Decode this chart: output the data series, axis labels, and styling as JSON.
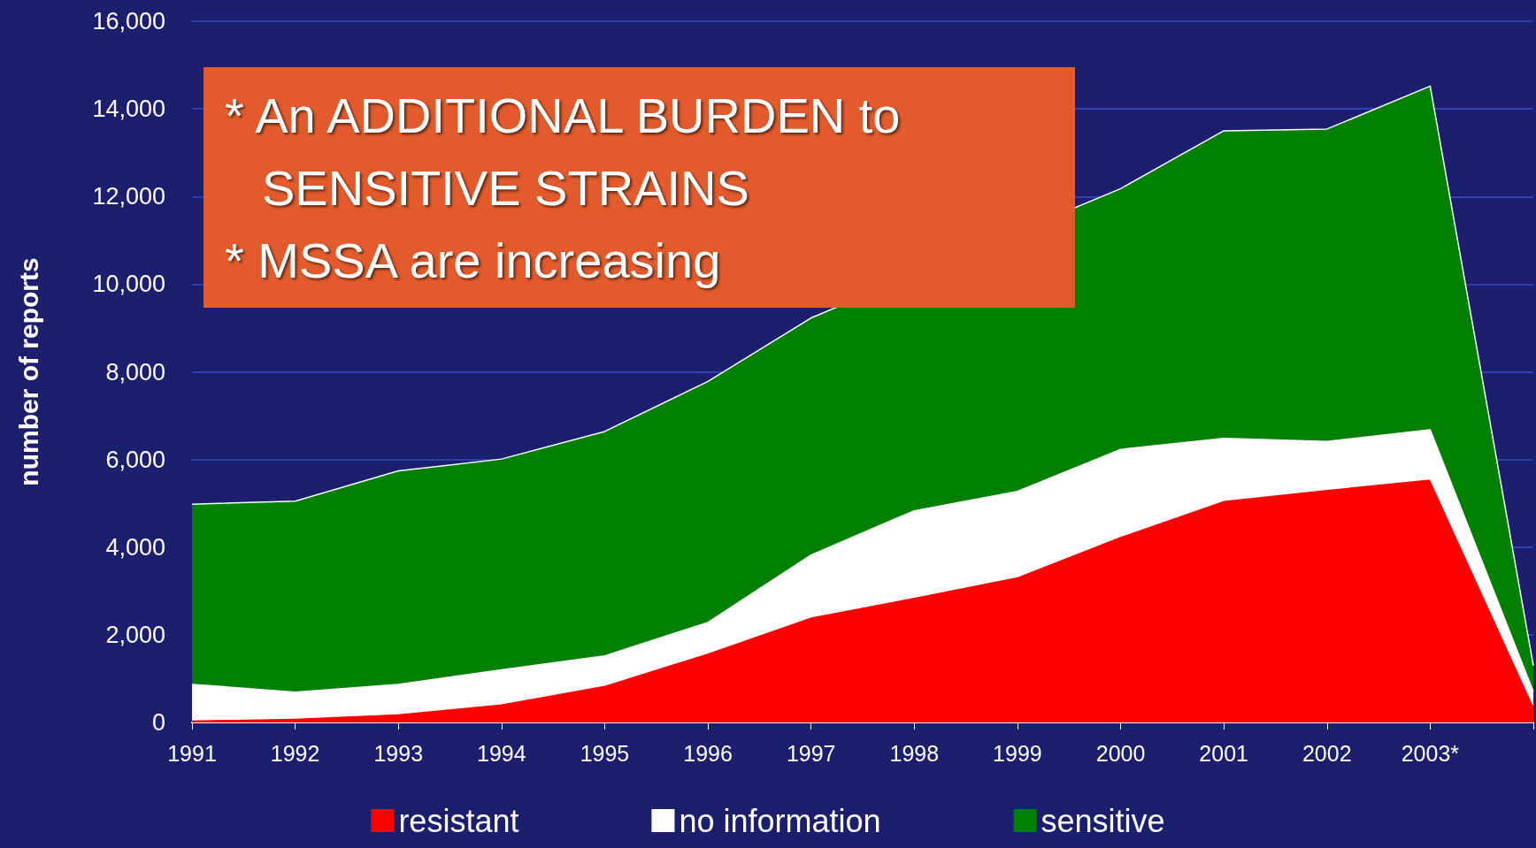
{
  "chart_data": {
    "type": "area",
    "stacked": true,
    "ylabel": "number of reports",
    "categories": [
      "1991",
      "1992",
      "1993",
      "1994",
      "1995",
      "1996",
      "1997",
      "1998",
      "1999",
      "2000",
      "2001",
      "2002",
      "2003*",
      null
    ],
    "series": [
      {
        "name": "resistant",
        "color": "#ff0000",
        "values": [
          60,
          100,
          200,
          430,
          850,
          1590,
          2410,
          2860,
          3330,
          4250,
          5070,
          5320,
          5560,
          400
        ]
      },
      {
        "name": "no information",
        "color": "#ffffff",
        "values": [
          810,
          590,
          670,
          770,
          670,
          690,
          1410,
          1970,
          1940,
          1980,
          1410,
          1090,
          1120,
          300
        ]
      },
      {
        "name": "sensitive",
        "color": "#008000",
        "values": [
          4110,
          4360,
          4870,
          4810,
          5120,
          5500,
          5410,
          null,
          null,
          5950,
          7020,
          7130,
          7840,
          600
        ]
      }
    ],
    "ylim": [
      0,
      16000
    ],
    "yticks": [
      {
        "value": 0,
        "label": "0"
      },
      {
        "value": 2000,
        "label": "2,000"
      },
      {
        "value": 4000,
        "label": "4,000"
      },
      {
        "value": 6000,
        "label": "6,000"
      },
      {
        "value": 8000,
        "label": "8,000"
      },
      {
        "value": 10000,
        "label": "10,000"
      },
      {
        "value": 12000,
        "label": "12,000"
      },
      {
        "value": 14000,
        "label": "14,000"
      },
      {
        "value": 16000,
        "label": "16,000"
      }
    ],
    "grid": "y",
    "legend": "bottom",
    "annotations": [
      "* An ADDITIONAL BURDEN to SENSITIVE STRAINS",
      "* MSSA are increasing"
    ]
  }
}
